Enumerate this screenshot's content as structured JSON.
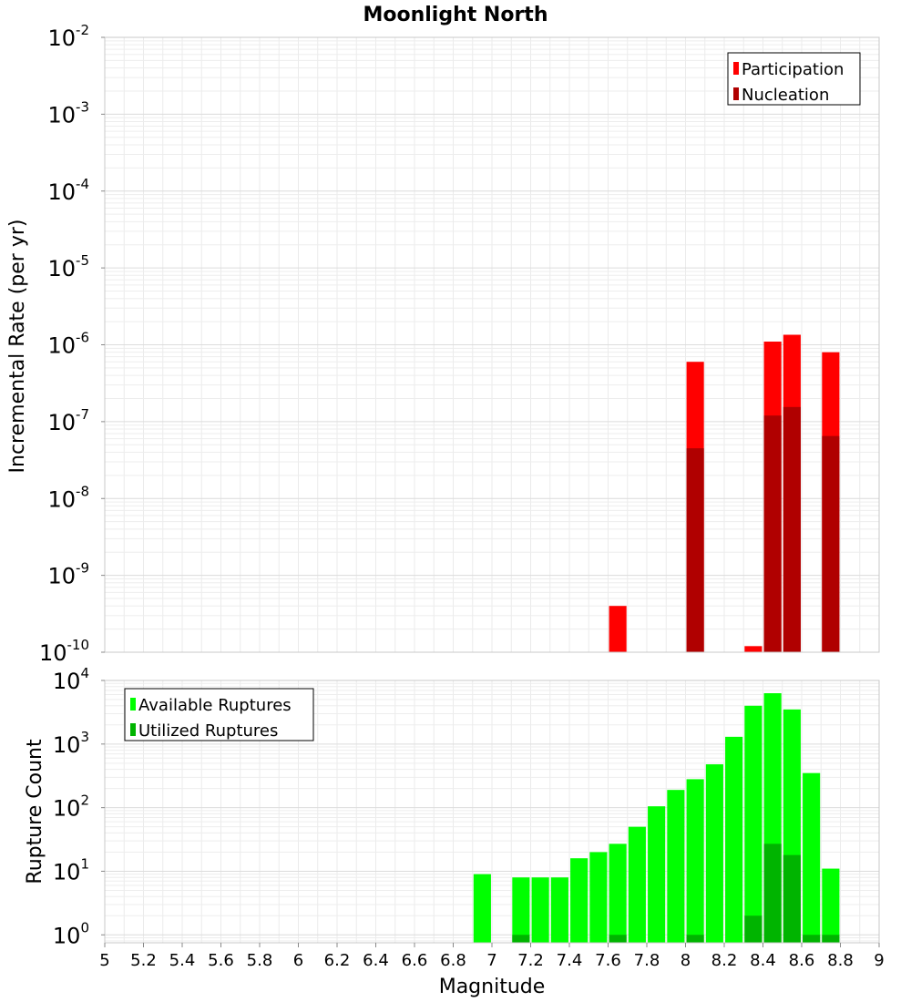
{
  "chart_data": [
    {
      "type": "bar",
      "title": "Moonlight North",
      "ylabel": "Incremental Rate (per yr)",
      "yscale": "log",
      "ylim": [
        1e-10,
        0.01
      ],
      "xlim": [
        5,
        9
      ],
      "y_ticks": [
        {
          "base": "10",
          "exp": "-2",
          "value": 0.01
        },
        {
          "base": "10",
          "exp": "-3",
          "value": 0.001
        },
        {
          "base": "10",
          "exp": "-4",
          "value": 0.0001
        },
        {
          "base": "10",
          "exp": "-5",
          "value": 1e-05
        },
        {
          "base": "10",
          "exp": "-6",
          "value": 1e-06
        },
        {
          "base": "10",
          "exp": "-7",
          "value": 1e-07
        },
        {
          "base": "10",
          "exp": "-8",
          "value": 1e-08
        },
        {
          "base": "10",
          "exp": "-9",
          "value": 1e-09
        },
        {
          "base": "10",
          "exp": "-10",
          "value": 1e-10
        }
      ],
      "grid": true,
      "legend_position": "top-right",
      "series": [
        {
          "name": "Participation",
          "color": "#ff0000",
          "x": [
            7.65,
            8.05,
            8.35,
            8.45,
            8.55,
            8.75
          ],
          "values": [
            4e-10,
            6e-07,
            1.2e-10,
            1.1e-06,
            1.35e-06,
            8e-07
          ]
        },
        {
          "name": "Nucleation",
          "color": "#b00000",
          "x": [
            8.05,
            8.45,
            8.55,
            8.75
          ],
          "values": [
            4.5e-08,
            1.2e-07,
            1.55e-07,
            6.5e-08
          ]
        }
      ]
    },
    {
      "type": "bar",
      "ylabel": "Rupture Count",
      "xlabel": "Magnitude",
      "yscale": "log",
      "ylim": [
        0.75,
        10000
      ],
      "xlim": [
        5,
        9
      ],
      "y_ticks": [
        {
          "base": "10",
          "exp": "4",
          "value": 10000
        },
        {
          "base": "10",
          "exp": "3",
          "value": 1000
        },
        {
          "base": "10",
          "exp": "2",
          "value": 100
        },
        {
          "base": "10",
          "exp": "1",
          "value": 10
        },
        {
          "base": "10",
          "exp": "0",
          "value": 1
        }
      ],
      "x_ticks": [
        "5",
        "5.2",
        "5.4",
        "5.6",
        "5.8",
        "6",
        "6.2",
        "6.4",
        "6.6",
        "6.8",
        "7",
        "7.2",
        "7.4",
        "7.6",
        "7.8",
        "8",
        "8.2",
        "8.4",
        "8.6",
        "8.8",
        "9"
      ],
      "grid": true,
      "legend_position": "top-left",
      "series": [
        {
          "name": "Available Ruptures",
          "color": "#00ff00",
          "x": [
            6.95,
            7.15,
            7.25,
            7.35,
            7.45,
            7.55,
            7.65,
            7.75,
            7.85,
            7.95,
            8.05,
            8.15,
            8.25,
            8.35,
            8.45,
            8.55,
            8.65,
            8.75
          ],
          "values": [
            9,
            8,
            8,
            8,
            16,
            20,
            27,
            50,
            105,
            190,
            280,
            480,
            1300,
            4000,
            6300,
            3500,
            350,
            11
          ]
        },
        {
          "name": "Utilized Ruptures",
          "color": "#00b400",
          "x": [
            7.15,
            7.65,
            8.05,
            8.35,
            8.45,
            8.55,
            8.65,
            8.75
          ],
          "values": [
            1,
            1,
            1,
            2,
            27,
            18,
            1,
            1
          ]
        }
      ]
    }
  ]
}
